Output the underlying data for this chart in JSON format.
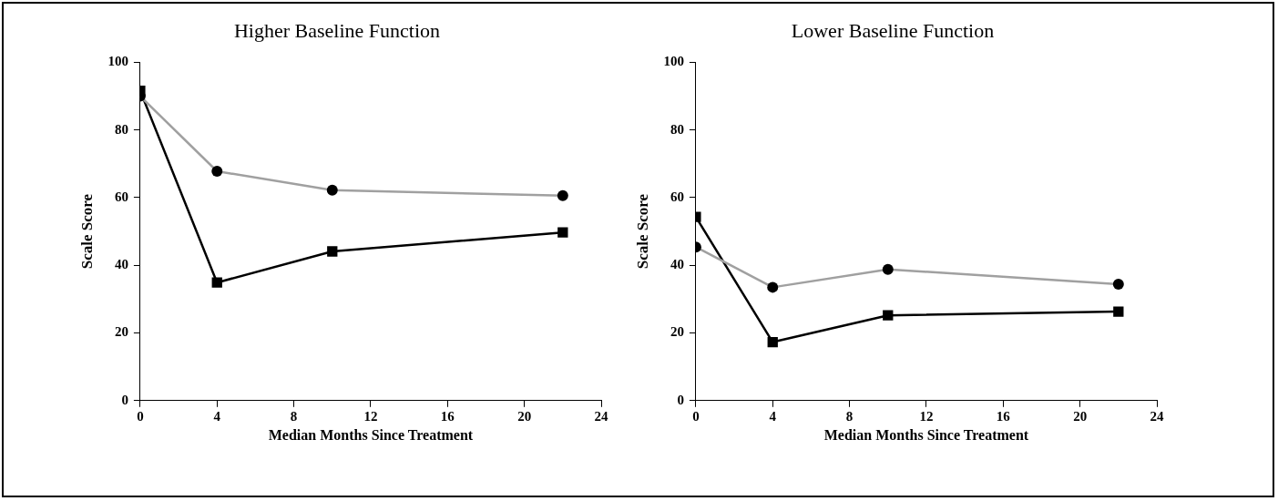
{
  "chart_data": [
    {
      "type": "line",
      "title": "Higher Baseline Function",
      "xlabel": "Median Months Since Treatment",
      "ylabel": "Scale Score",
      "x": [
        0,
        4,
        10,
        22
      ],
      "series": [
        {
          "color": "#a0a0a0",
          "marker": "circle",
          "values": [
            90,
            67.8,
            62.2,
            60.6
          ]
        },
        {
          "color": "#000000",
          "marker": "square",
          "values": [
            91.6,
            34.9,
            44.1,
            49.7
          ]
        }
      ],
      "xlim": [
        0,
        24
      ],
      "xticks": [
        0,
        4,
        8,
        12,
        16,
        20,
        24
      ],
      "ylim": [
        0,
        100
      ],
      "yticks": [
        0,
        20,
        40,
        60,
        80,
        100
      ],
      "grid": false,
      "legend": false
    },
    {
      "type": "line",
      "title": "Lower Baseline Function",
      "xlabel": "Median Months Since Treatment",
      "ylabel": "Scale Score",
      "x": [
        0,
        4,
        10,
        22
      ],
      "series": [
        {
          "color": "#a0a0a0",
          "marker": "circle",
          "values": [
            45.4,
            33.5,
            38.8,
            34.4
          ]
        },
        {
          "color": "#000000",
          "marker": "square",
          "values": [
            54.3,
            17.3,
            25.2,
            26.3
          ]
        }
      ],
      "xlim": [
        0,
        24
      ],
      "xticks": [
        0,
        4,
        8,
        12,
        16,
        20,
        24
      ],
      "ylim": [
        0,
        100
      ],
      "yticks": [
        0,
        20,
        40,
        60,
        80,
        100
      ],
      "grid": false,
      "legend": false
    }
  ]
}
